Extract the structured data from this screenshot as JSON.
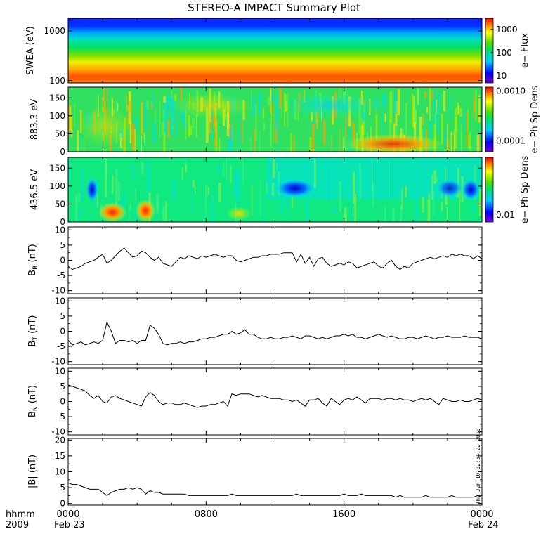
{
  "title": "STEREO-A IMPACT Summary Plot",
  "time_axis": {
    "ticks": [
      {
        "label": "0000",
        "hour": 0
      },
      {
        "label": "0800",
        "hour": 8
      },
      {
        "label": "1600",
        "hour": 16
      },
      {
        "label": "0000",
        "hour": 24
      }
    ],
    "date_start": "Feb 23",
    "date_end": "Feb 24",
    "unit_label": "hhmm",
    "year_label": "2009"
  },
  "timestamp": "Thu Jun 10 02:54:22 2010",
  "chart_data": [
    {
      "type": "heatmap",
      "id": "swea",
      "ylabel": "SWEA (eV)",
      "ylog": true,
      "ylim": [
        90,
        1800
      ],
      "y_ticks": [
        "1000",
        "100"
      ],
      "y_tick_values": [
        1000,
        100
      ],
      "colorbar": {
        "label": "e− Flux",
        "tick_labels": [
          "1000",
          "100",
          "10"
        ],
        "tick_values": [
          1000,
          100,
          10
        ],
        "log": true,
        "range": [
          5,
          3000
        ]
      }
    },
    {
      "type": "heatmap",
      "id": "pad883",
      "ylabel": "883.3 eV",
      "ylim": [
        0,
        180
      ],
      "y_ticks": [
        "150",
        "100",
        "50",
        "0"
      ],
      "y_tick_values": [
        150,
        100,
        50,
        0
      ],
      "colorbar": {
        "label": "e− Ph Sp Dens",
        "tick_labels": [
          "0.0010",
          "0.0001"
        ],
        "tick_values": [
          0.001,
          0.0001
        ],
        "log": true,
        "range": [
          6e-05,
          0.0012
        ]
      }
    },
    {
      "type": "heatmap",
      "id": "pad436",
      "ylabel": "436.5 eV",
      "ylim": [
        0,
        180
      ],
      "y_ticks": [
        "150",
        "100",
        "50",
        "0"
      ],
      "y_tick_values": [
        150,
        100,
        50,
        0
      ],
      "colorbar": {
        "label": "e− Ph Sp Dens",
        "tick_labels": [
          "0.01"
        ],
        "tick_values": [
          0.01
        ],
        "log": true,
        "range": [
          0.008,
          0.06
        ]
      }
    },
    {
      "type": "line",
      "id": "br",
      "ylabel": "B_R (nT)",
      "ylim": [
        -11,
        11
      ],
      "y_ticks": [
        "10",
        "5",
        "0",
        "-5",
        "-10"
      ],
      "y_tick_values": [
        10,
        5,
        0,
        -5,
        -10
      ],
      "series": [
        {
          "x": [
            0,
            0.25,
            0.5,
            0.75,
            1,
            1.25,
            1.5,
            1.75,
            2,
            2.25,
            2.5,
            2.75,
            3,
            3.25,
            3.5,
            3.75,
            4,
            4.25,
            4.5,
            4.75,
            5,
            5.25,
            5.5,
            5.75,
            6,
            6.25,
            6.5,
            6.75,
            7,
            7.25,
            7.5,
            7.75,
            8,
            8.25,
            8.5,
            8.75,
            9,
            9.25,
            9.5,
            9.75,
            10,
            10.25,
            10.5,
            10.75,
            11,
            11.25,
            11.5,
            11.75,
            12,
            12.25,
            12.5,
            12.75,
            13,
            13.25,
            13.5,
            13.75,
            14,
            14.25,
            14.5,
            14.75,
            15,
            15.25,
            15.5,
            15.75,
            16,
            16.25,
            16.5,
            16.75,
            17,
            17.25,
            17.5,
            17.75,
            18,
            18.25,
            18.5,
            18.75,
            19,
            19.25,
            19.5,
            19.75,
            20,
            20.25,
            20.5,
            20.75,
            21,
            21.25,
            21.5,
            21.75,
            22,
            22.25,
            22.5,
            22.75,
            23,
            23.25,
            23.5,
            23.75,
            24
          ],
          "y": [
            -2,
            -3,
            -2.5,
            -2,
            -1,
            -0.5,
            0,
            1,
            2,
            -1,
            0,
            1.5,
            3,
            4,
            2.5,
            1,
            1.5,
            3,
            2.5,
            1,
            0,
            1,
            -1,
            -1.5,
            -2,
            -0.5,
            1,
            0.5,
            1.5,
            1,
            0.5,
            1.5,
            1,
            1.5,
            2,
            1.5,
            1,
            1.5,
            1.5,
            0,
            -0.5,
            0,
            0.5,
            1,
            1,
            1.5,
            1.5,
            2,
            2,
            2,
            2.5,
            2.5,
            2.5,
            -0.5,
            2,
            -1,
            1,
            -2,
            0.5,
            1,
            -1,
            -2,
            -1.5,
            -1,
            -1.5,
            -0.5,
            -1,
            -2.5,
            -2,
            -1.5,
            -1,
            -0.5,
            -2,
            -2.5,
            -1,
            0,
            -2,
            -3,
            -2,
            -2.5,
            -1,
            -0.5,
            0,
            0.5,
            1,
            0.5,
            1,
            1.5,
            1,
            2,
            1.5,
            2,
            1.5,
            1.5,
            0.5,
            1.5,
            0.5
          ]
        }
      ]
    },
    {
      "type": "line",
      "id": "bt",
      "ylabel": "B_T (nT)",
      "ylim": [
        -11,
        11
      ],
      "y_ticks": [
        "10",
        "5",
        "0",
        "-5",
        "-10"
      ],
      "y_tick_values": [
        10,
        5,
        0,
        -5,
        -10
      ],
      "series": [
        {
          "x": [
            0,
            0.25,
            0.5,
            0.75,
            1,
            1.25,
            1.5,
            1.75,
            2,
            2.25,
            2.5,
            2.75,
            3,
            3.25,
            3.5,
            3.75,
            4,
            4.25,
            4.5,
            4.75,
            5,
            5.25,
            5.5,
            5.75,
            6,
            6.25,
            6.5,
            6.75,
            7,
            7.25,
            7.5,
            7.75,
            8,
            8.25,
            8.5,
            8.75,
            9,
            9.25,
            9.5,
            9.75,
            10,
            10.25,
            10.5,
            10.75,
            11,
            11.25,
            11.5,
            11.75,
            12,
            12.25,
            12.5,
            12.75,
            13,
            13.25,
            13.5,
            13.75,
            14,
            14.25,
            14.5,
            14.75,
            15,
            15.25,
            15.5,
            15.75,
            16,
            16.25,
            16.5,
            16.75,
            17,
            17.25,
            17.5,
            17.75,
            18,
            18.25,
            18.5,
            18.75,
            19,
            19.25,
            19.5,
            19.75,
            20,
            20.25,
            20.5,
            20.75,
            21,
            21.25,
            21.5,
            21.75,
            22,
            22.25,
            22.5,
            22.75,
            23,
            23.25,
            23.5,
            23.75,
            24
          ],
          "y": [
            -3,
            -4.5,
            -4,
            -3.5,
            -4.5,
            -4,
            -3.5,
            -4,
            -3,
            3,
            0,
            -4,
            -3,
            -3,
            -3.5,
            -3,
            -4,
            -3,
            -3,
            2,
            1,
            -1,
            -4,
            -4.5,
            -4,
            -4,
            -3.5,
            -4,
            -3.5,
            -3.5,
            -3,
            -2.5,
            -2.5,
            -2,
            -2,
            -1.5,
            -1,
            -1,
            0,
            -1,
            -0.5,
            0.5,
            -1,
            -1,
            -2,
            -2.5,
            -2.5,
            -2,
            -2.5,
            -2.5,
            -2,
            -2,
            -1.5,
            -2,
            -2.5,
            -1.5,
            -1.5,
            -2,
            -2.5,
            -2,
            -2.5,
            -2,
            -1.5,
            -1.5,
            -1,
            -1.5,
            -1,
            -2,
            -2,
            -2.5,
            -2,
            -1.5,
            -1,
            -1.5,
            -2,
            -1.5,
            -2,
            -2.5,
            -2.5,
            -2,
            -2,
            -2.5,
            -2,
            -1.5,
            -2,
            -2.5,
            -2,
            -2,
            -1.5,
            -2,
            -2,
            -2,
            -1.5,
            -2,
            -2,
            -2,
            -2.5
          ]
        }
      ]
    },
    {
      "type": "line",
      "id": "bn",
      "ylabel": "B_N (nT)",
      "ylim": [
        -11,
        11
      ],
      "y_ticks": [
        "10",
        "5",
        "0",
        "-5",
        "-10"
      ],
      "y_tick_values": [
        10,
        5,
        0,
        -5,
        -10
      ],
      "series": [
        {
          "x": [
            0,
            0.25,
            0.5,
            0.75,
            1,
            1.25,
            1.5,
            1.75,
            2,
            2.25,
            2.5,
            2.75,
            3,
            3.25,
            3.5,
            3.75,
            4,
            4.25,
            4.5,
            4.75,
            5,
            5.25,
            5.5,
            5.75,
            6,
            6.25,
            6.5,
            6.75,
            7,
            7.25,
            7.5,
            7.75,
            8,
            8.25,
            8.5,
            8.75,
            9,
            9.25,
            9.5,
            9.75,
            10,
            10.25,
            10.5,
            10.75,
            11,
            11.25,
            11.5,
            11.75,
            12,
            12.25,
            12.5,
            12.75,
            13,
            13.25,
            13.5,
            13.75,
            14,
            14.25,
            14.5,
            14.75,
            15,
            15.25,
            15.5,
            15.75,
            16,
            16.25,
            16.5,
            16.75,
            17,
            17.25,
            17.5,
            17.75,
            18,
            18.25,
            18.5,
            18.75,
            19,
            19.25,
            19.5,
            19.75,
            20,
            20.25,
            20.5,
            20.75,
            21,
            21.25,
            21.5,
            21.75,
            22,
            22.25,
            22.5,
            22.75,
            23,
            23.25,
            23.5,
            23.75,
            24
          ],
          "y": [
            5.5,
            5,
            4.5,
            4,
            3.5,
            2,
            1,
            2,
            0,
            -0.5,
            1.5,
            2,
            1,
            0.5,
            0,
            -0.5,
            -1,
            -1.5,
            1.5,
            3,
            2,
            0,
            -1,
            -0.5,
            -0.5,
            -1,
            -1,
            -0.5,
            -1,
            -1.5,
            -2,
            -1.5,
            -1.5,
            -1,
            -1,
            -0.5,
            0,
            -1.5,
            2.5,
            2,
            2.5,
            2.5,
            2.5,
            2,
            1.5,
            2,
            1.5,
            1,
            1,
            1,
            0.5,
            0.5,
            0,
            0.5,
            -0.5,
            -1.5,
            0.5,
            0.5,
            1,
            -0.5,
            -1.5,
            1,
            0,
            -1,
            0.5,
            1,
            0.5,
            1.5,
            0.5,
            -0.5,
            1,
            1,
            1,
            0.5,
            1,
            1,
            0.5,
            1,
            0.5,
            0.5,
            0,
            0.5,
            1,
            0.5,
            1,
            0,
            -1,
            1,
            0.5,
            0,
            0,
            0.5,
            0,
            0,
            0.5,
            1,
            0.5
          ]
        }
      ]
    },
    {
      "type": "line",
      "id": "bmag",
      "ylabel": "|B| (nT)",
      "ylim": [
        -0.5,
        20.5
      ],
      "y_ticks": [
        "20",
        "15",
        "10",
        "5",
        "0"
      ],
      "y_tick_values": [
        20,
        15,
        10,
        5,
        0
      ],
      "series": [
        {
          "x": [
            0,
            0.25,
            0.5,
            0.75,
            1,
            1.25,
            1.5,
            1.75,
            2,
            2.25,
            2.5,
            2.75,
            3,
            3.25,
            3.5,
            3.75,
            4,
            4.25,
            4.5,
            4.75,
            5,
            5.25,
            5.5,
            5.75,
            6,
            6.25,
            6.5,
            6.75,
            7,
            7.25,
            7.5,
            7.75,
            8,
            8.25,
            8.5,
            8.75,
            9,
            9.25,
            9.5,
            9.75,
            10,
            10.25,
            10.5,
            10.75,
            11,
            11.25,
            11.5,
            11.75,
            12,
            12.25,
            12.5,
            12.75,
            13,
            13.25,
            13.5,
            13.75,
            14,
            14.25,
            14.5,
            14.75,
            15,
            15.25,
            15.5,
            15.75,
            16,
            16.25,
            16.5,
            16.75,
            17,
            17.25,
            17.5,
            17.75,
            18,
            18.25,
            18.5,
            18.75,
            19,
            19.25,
            19.5,
            19.75,
            20,
            20.25,
            20.5,
            20.75,
            21,
            21.25,
            21.5,
            21.75,
            22,
            22.25,
            22.5,
            22.75,
            23,
            23.25,
            23.5,
            23.75,
            24
          ],
          "y": [
            6.5,
            6,
            6,
            5.5,
            5,
            4.5,
            4.5,
            4.5,
            3.5,
            2.5,
            3.5,
            4,
            4.5,
            4.5,
            5,
            4.5,
            5,
            4.5,
            3,
            4,
            3.5,
            3.5,
            3,
            3,
            3,
            3,
            3,
            3,
            2.5,
            2.5,
            2.5,
            2.5,
            2.5,
            2.5,
            2.5,
            2.5,
            2.5,
            2.5,
            3,
            2.5,
            2.5,
            2.5,
            2.5,
            2.5,
            2.5,
            2.5,
            2.5,
            2.5,
            2.5,
            2.5,
            2.5,
            2.5,
            2.5,
            3,
            2.5,
            2.5,
            2.5,
            2.5,
            2.5,
            2.5,
            2.5,
            2.5,
            2.5,
            2.5,
            3,
            2.5,
            2.5,
            2.5,
            3,
            2.5,
            2.5,
            2.5,
            2.5,
            2.5,
            2.5,
            2.5,
            2,
            2.5,
            2,
            2,
            2,
            2,
            2,
            2.5,
            2,
            2,
            2,
            2,
            2,
            2.5,
            2,
            2,
            2,
            2,
            2,
            2.5,
            2
          ]
        }
      ]
    }
  ]
}
